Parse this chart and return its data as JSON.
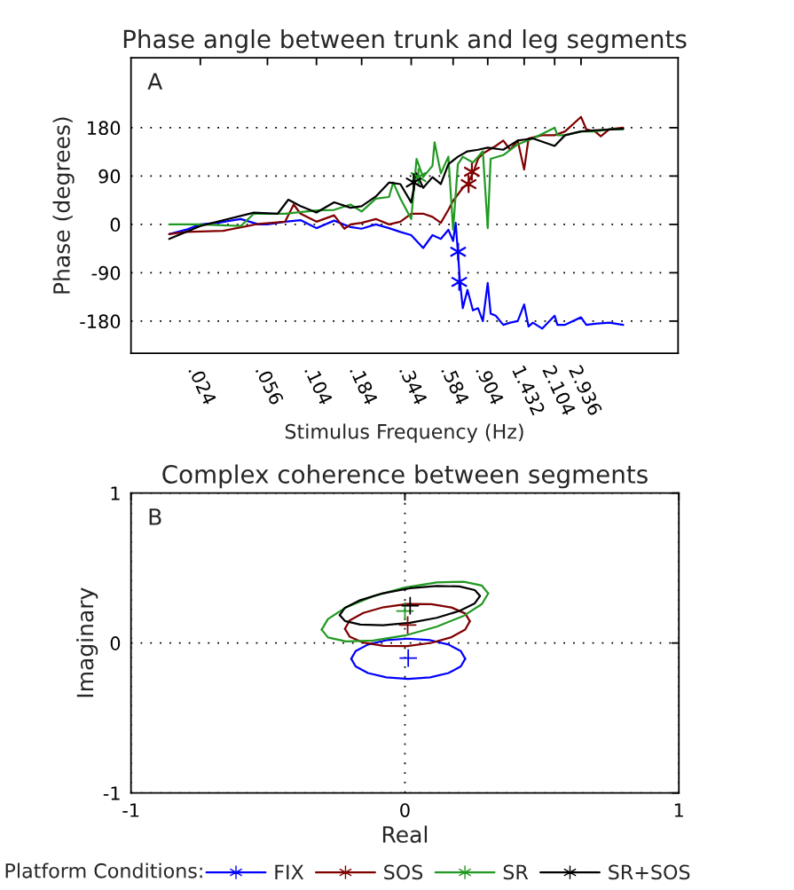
{
  "chart_data": [
    {
      "type": "line",
      "title": "Phase angle between trunk and leg segments",
      "xlabel": "Stimulus Frequency (Hz)",
      "ylabel": "Phase (degrees)",
      "annotations": [
        "A"
      ],
      "log": "x",
      "xlim": [
        0.01,
        10
      ],
      "ylim": [
        -240,
        310
      ],
      "xticks": [
        {
          "value": 0.024,
          "label": ".024"
        },
        {
          "value": 0.056,
          "label": ".056"
        },
        {
          "value": 0.104,
          "label": ".104"
        },
        {
          "value": 0.184,
          "label": ".184"
        },
        {
          "value": 0.344,
          "label": ".344"
        },
        {
          "value": 0.584,
          "label": ".584"
        },
        {
          "value": 0.904,
          "label": ".904"
        },
        1.432,
        2.104,
        2.936
      ],
      "yticks": [
        -180,
        -90,
        0,
        90,
        180
      ],
      "grid": "y",
      "legend": "bottom",
      "legend_title": "Platform Conditions:",
      "series": [
        {
          "name": "FIX",
          "color": "#0000ff",
          "x": [
            0.0162,
            0.02,
            0.024,
            0.03,
            0.04,
            0.05,
            0.056,
            0.07,
            0.085,
            0.104,
            0.13,
            0.16,
            0.184,
            0.22,
            0.26,
            0.3,
            0.344,
            0.4,
            0.45,
            0.5,
            0.55,
            0.584,
            0.603,
            0.62,
            0.637,
            0.66,
            0.7,
            0.75,
            0.8,
            0.85,
            0.904,
            0.938,
            1.0,
            1.1,
            1.2,
            1.32,
            1.432,
            1.514,
            1.6,
            1.8,
            2.104,
            2.18,
            2.4,
            2.936,
            3.14,
            3.5,
            4.2,
            5.0
          ],
          "values": [
            -18,
            -10,
            0,
            3,
            10,
            0,
            0,
            5,
            8,
            -7,
            7,
            -5,
            -8,
            0,
            -7,
            -14,
            -20,
            -44,
            -20,
            -27,
            -10,
            -31,
            3,
            -51,
            -107,
            -156,
            -122,
            -160,
            -156,
            -180,
            -109,
            -166,
            -170,
            -187,
            -183,
            -180,
            -149,
            -190,
            -183,
            -194,
            -170,
            -187,
            -187,
            -173,
            -187,
            -185,
            -183,
            -187
          ]
        },
        {
          "name": "SOS",
          "color": "#800000",
          "x": [
            0.0162,
            0.02,
            0.032,
            0.05,
            0.07,
            0.078,
            0.085,
            0.104,
            0.13,
            0.148,
            0.16,
            0.184,
            0.22,
            0.26,
            0.3,
            0.344,
            0.4,
            0.45,
            0.5,
            0.55,
            0.584,
            0.66,
            0.7,
            0.75,
            0.8,
            0.85,
            1.0,
            1.1,
            1.2,
            1.32,
            1.432,
            1.514,
            1.8,
            2.104,
            2.4,
            2.936,
            3.14,
            3.5,
            3.77,
            4.2,
            5.0
          ],
          "values": [
            -18,
            -14,
            -12,
            1,
            5,
            37,
            20,
            5,
            17,
            -8,
            0,
            3,
            10,
            0,
            5,
            20,
            20,
            14,
            3,
            27,
            44,
            68,
            75,
            95,
            122,
            132,
            146,
            156,
            139,
            156,
            102,
            160,
            166,
            166,
            173,
            200,
            177,
            173,
            164,
            177,
            180
          ]
        },
        {
          "name": "SR",
          "color": "#229922",
          "x": [
            0.0162,
            0.024,
            0.04,
            0.0472,
            0.07,
            0.104,
            0.13,
            0.16,
            0.184,
            0.22,
            0.26,
            0.274,
            0.3,
            0.344,
            0.368,
            0.4,
            0.45,
            0.462,
            0.5,
            0.55,
            0.584,
            0.62,
            0.66,
            0.75,
            0.85,
            0.904,
            0.938,
            1.1,
            1.32,
            1.6,
            2.104,
            2.18,
            2.4,
            2.936,
            3.5,
            4.2,
            5.0
          ],
          "values": [
            0,
            0,
            -3,
            20,
            20,
            26,
            27,
            37,
            24,
            48,
            51,
            78,
            48,
            10,
            122,
            88,
            109,
            153,
            95,
            126,
            -10,
            112,
            126,
            115,
            136,
            -7,
            122,
            129,
            149,
            160,
            180,
            166,
            166,
            173,
            173,
            177,
            177
          ]
        },
        {
          "name": "SR+SOS",
          "color": "#000000",
          "x": [
            0.0162,
            0.024,
            0.0472,
            0.0638,
            0.0729,
            0.085,
            0.104,
            0.13,
            0.16,
            0.184,
            0.22,
            0.26,
            0.3,
            0.344,
            0.368,
            0.4,
            0.45,
            0.5,
            0.55,
            0.62,
            0.7,
            0.8,
            0.904,
            1.1,
            1.32,
            1.6,
            2.104,
            2.4,
            2.936,
            3.5,
            5.0
          ],
          "values": [
            -27,
            -3,
            22,
            20,
            46,
            34,
            22,
            41,
            31,
            34,
            52,
            78,
            75,
            41,
            95,
            68,
            88,
            75,
            112,
            126,
            136,
            139,
            143,
            139,
            156,
            160,
            146,
            166,
            173,
            175,
            178
          ]
        },
        {
          "type": "scatter",
          "marker": "cross",
          "color": "#0000ff",
          "x": [
            0.622,
            0.631
          ],
          "values": [
            -51,
            -107
          ]
        },
        {
          "type": "scatter",
          "marker": "cross",
          "color": "#800000",
          "x": [
            0.71,
            0.74
          ],
          "values": [
            75,
            98
          ]
        },
        {
          "type": "scatter",
          "marker": "cross",
          "color": "#229922",
          "x": [
            0.377
          ],
          "values": [
            88
          ]
        },
        {
          "type": "scatter",
          "marker": "cross",
          "color": "#000000",
          "x": [
            0.355
          ],
          "values": [
            78
          ]
        }
      ]
    },
    {
      "type": "line",
      "title": "Complex coherence between segments",
      "xlabel": "Real",
      "ylabel": "Imaginary",
      "annotations": [
        "B"
      ],
      "xlim": [
        -1,
        1
      ],
      "ylim": [
        -1,
        1
      ],
      "xticks": [
        -1,
        0,
        1
      ],
      "yticks": [
        -1,
        0,
        1
      ],
      "grid": true,
      "series": [
        {
          "color": "#0000ff",
          "x": [
            0.22,
            0.204,
            0.159,
            0.092,
            0.012,
            -0.068,
            -0.135,
            -0.18,
            -0.196,
            -0.18,
            -0.135,
            -0.068,
            0.012,
            0.092,
            0.159,
            0.204,
            0.22
          ],
          "values": [
            -0.105,
            -0.054,
            -0.01,
            0.019,
            0.029,
            0.019,
            -0.01,
            -0.054,
            -0.105,
            -0.156,
            -0.2,
            -0.229,
            -0.239,
            -0.229,
            -0.2,
            -0.156,
            -0.105
          ]
        },
        {
          "color": "#800000",
          "x": [
            0.237,
            0.22,
            0.17,
            0.096,
            0.009,
            -0.078,
            -0.152,
            -0.202,
            -0.219,
            -0.202,
            -0.152,
            -0.078,
            0.009,
            0.096,
            0.17,
            0.22,
            0.237
          ],
          "values": [
            0.145,
            0.197,
            0.237,
            0.259,
            0.26,
            0.239,
            0.201,
            0.15,
            0.095,
            0.043,
            0.003,
            -0.019,
            -0.02,
            0.001,
            0.039,
            0.09,
            0.145
          ]
        },
        {
          "color": "#229922",
          "x": [
            0.304,
            0.281,
            0.215,
            0.116,
            0.0,
            -0.116,
            -0.215,
            -0.281,
            -0.304,
            -0.281,
            -0.215,
            -0.116,
            0.0,
            0.116,
            0.215,
            0.281,
            0.304
          ],
          "values": [
            0.331,
            0.383,
            0.409,
            0.404,
            0.37,
            0.312,
            0.238,
            0.16,
            0.089,
            0.037,
            0.011,
            0.016,
            0.05,
            0.109,
            0.182,
            0.26,
            0.331
          ]
        },
        {
          "color": "#000000",
          "x": [
            0.274,
            0.255,
            0.199,
            0.116,
            0.018,
            -0.08,
            -0.163,
            -0.219,
            -0.238,
            -0.219,
            -0.163,
            -0.08,
            0.018,
            0.116,
            0.199,
            0.255,
            0.274
          ],
          "values": [
            0.314,
            0.353,
            0.377,
            0.381,
            0.365,
            0.332,
            0.286,
            0.235,
            0.186,
            0.147,
            0.123,
            0.119,
            0.135,
            0.168,
            0.214,
            0.265,
            0.314
          ]
        },
        {
          "type": "scatter",
          "marker": "cross",
          "color": "#0000ff",
          "x": [
            0.012
          ],
          "values": [
            -0.1
          ]
        },
        {
          "type": "scatter",
          "marker": "cross",
          "color": "#800000",
          "x": [
            0.01
          ],
          "values": [
            0.12
          ]
        },
        {
          "type": "scatter",
          "marker": "cross",
          "color": "#229922",
          "x": [
            0.0
          ],
          "values": [
            0.213
          ]
        },
        {
          "type": "scatter",
          "marker": "cross",
          "color": "#000000",
          "x": [
            0.019
          ],
          "values": [
            0.249
          ]
        }
      ]
    }
  ]
}
